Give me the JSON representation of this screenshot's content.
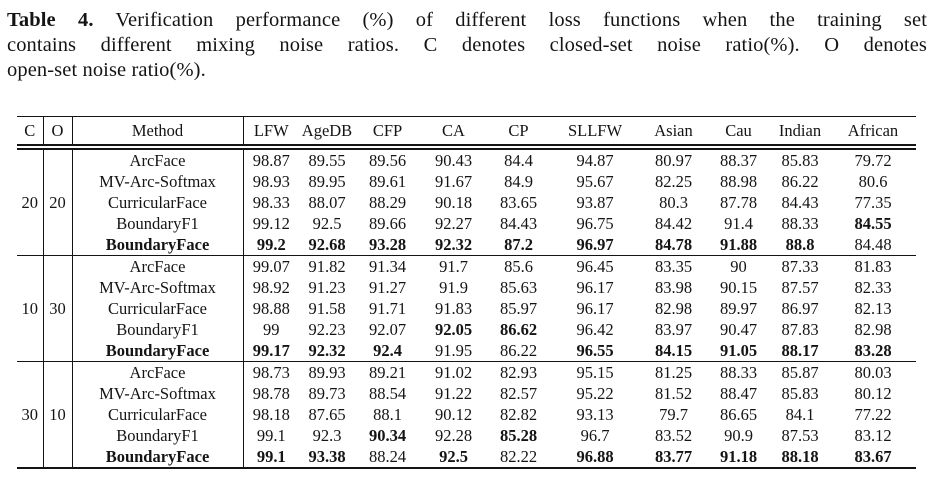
{
  "caption": {
    "label": "Table 4.",
    "line1_rest": " Verification performance (%) of different loss functions when the training set",
    "line2": "contains different mixing noise ratios. C denotes closed-set noise ratio(%). O denotes",
    "line3": "open-set noise ratio(%)."
  },
  "table": {
    "columns": [
      "C",
      "O",
      "Method",
      "LFW",
      "AgeDB",
      "CFP",
      "CA",
      "CP",
      "SLLFW",
      "Asian",
      "Cau",
      "Indian",
      "African"
    ],
    "groups": [
      {
        "c": "20",
        "o": "20",
        "rows": [
          {
            "method": "ArcFace",
            "method_bold": false,
            "values": [
              "98.87",
              "89.55",
              "89.56",
              "90.43",
              "84.4",
              "94.87",
              "80.97",
              "88.37",
              "85.83",
              "79.72"
            ],
            "bold": []
          },
          {
            "method": "MV-Arc-Softmax",
            "method_bold": false,
            "values": [
              "98.93",
              "89.95",
              "89.61",
              "91.67",
              "84.9",
              "95.67",
              "82.25",
              "88.98",
              "86.22",
              "80.6"
            ],
            "bold": []
          },
          {
            "method": "CurricularFace",
            "method_bold": false,
            "values": [
              "98.33",
              "88.07",
              "88.29",
              "90.18",
              "83.65",
              "93.87",
              "80.3",
              "87.78",
              "84.43",
              "77.35"
            ],
            "bold": []
          },
          {
            "method": "BoundaryF1",
            "method_bold": false,
            "values": [
              "99.12",
              "92.5",
              "89.66",
              "92.27",
              "84.43",
              "96.75",
              "84.42",
              "91.4",
              "88.33",
              "84.55"
            ],
            "bold": [
              9
            ]
          },
          {
            "method": "BoundaryFace",
            "method_bold": true,
            "values": [
              "99.2",
              "92.68",
              "93.28",
              "92.32",
              "87.2",
              "96.97",
              "84.78",
              "91.88",
              "88.8",
              "84.48"
            ],
            "bold": [
              0,
              1,
              2,
              3,
              4,
              5,
              6,
              7,
              8
            ]
          }
        ]
      },
      {
        "c": "10",
        "o": "30",
        "rows": [
          {
            "method": "ArcFace",
            "method_bold": false,
            "values": [
              "99.07",
              "91.82",
              "91.34",
              "91.7",
              "85.6",
              "96.45",
              "83.35",
              "90",
              "87.33",
              "81.83"
            ],
            "bold": []
          },
          {
            "method": "MV-Arc-Softmax",
            "method_bold": false,
            "values": [
              "98.92",
              "91.23",
              "91.27",
              "91.9",
              "85.63",
              "96.17",
              "83.98",
              "90.15",
              "87.57",
              "82.33"
            ],
            "bold": []
          },
          {
            "method": "CurricularFace",
            "method_bold": false,
            "values": [
              "98.88",
              "91.58",
              "91.71",
              "91.83",
              "85.97",
              "96.17",
              "82.98",
              "89.97",
              "86.97",
              "82.13"
            ],
            "bold": []
          },
          {
            "method": "BoundaryF1",
            "method_bold": false,
            "values": [
              "99",
              "92.23",
              "92.07",
              "92.05",
              "86.62",
              "96.42",
              "83.97",
              "90.47",
              "87.83",
              "82.98"
            ],
            "bold": [
              3,
              4
            ]
          },
          {
            "method": "BoundaryFace",
            "method_bold": true,
            "values": [
              "99.17",
              "92.32",
              "92.4",
              "91.95",
              "86.22",
              "96.55",
              "84.15",
              "91.05",
              "88.17",
              "83.28"
            ],
            "bold": [
              0,
              1,
              2,
              5,
              6,
              7,
              8,
              9
            ]
          }
        ]
      },
      {
        "c": "30",
        "o": "10",
        "rows": [
          {
            "method": "ArcFace",
            "method_bold": false,
            "values": [
              "98.73",
              "89.93",
              "89.21",
              "91.02",
              "82.93",
              "95.15",
              "81.25",
              "88.33",
              "85.87",
              "80.03"
            ],
            "bold": []
          },
          {
            "method": "MV-Arc-Softmax",
            "method_bold": false,
            "values": [
              "98.78",
              "89.73",
              "88.54",
              "91.22",
              "82.57",
              "95.22",
              "81.52",
              "88.47",
              "85.83",
              "80.12"
            ],
            "bold": []
          },
          {
            "method": "CurricularFace",
            "method_bold": false,
            "values": [
              "98.18",
              "87.65",
              "88.1",
              "90.12",
              "82.82",
              "93.13",
              "79.7",
              "86.65",
              "84.1",
              "77.22"
            ],
            "bold": []
          },
          {
            "method": "BoundaryF1",
            "method_bold": false,
            "values": [
              "99.1",
              "92.3",
              "90.34",
              "92.28",
              "85.28",
              "96.7",
              "83.52",
              "90.9",
              "87.53",
              "83.12"
            ],
            "bold": [
              2,
              4
            ]
          },
          {
            "method": "BoundaryFace",
            "method_bold": true,
            "values": [
              "99.1",
              "93.38",
              "88.24",
              "92.5",
              "82.22",
              "96.88",
              "83.77",
              "91.18",
              "88.18",
              "83.67"
            ],
            "bold": [
              0,
              1,
              3,
              5,
              6,
              7,
              8,
              9
            ]
          }
        ]
      }
    ]
  }
}
